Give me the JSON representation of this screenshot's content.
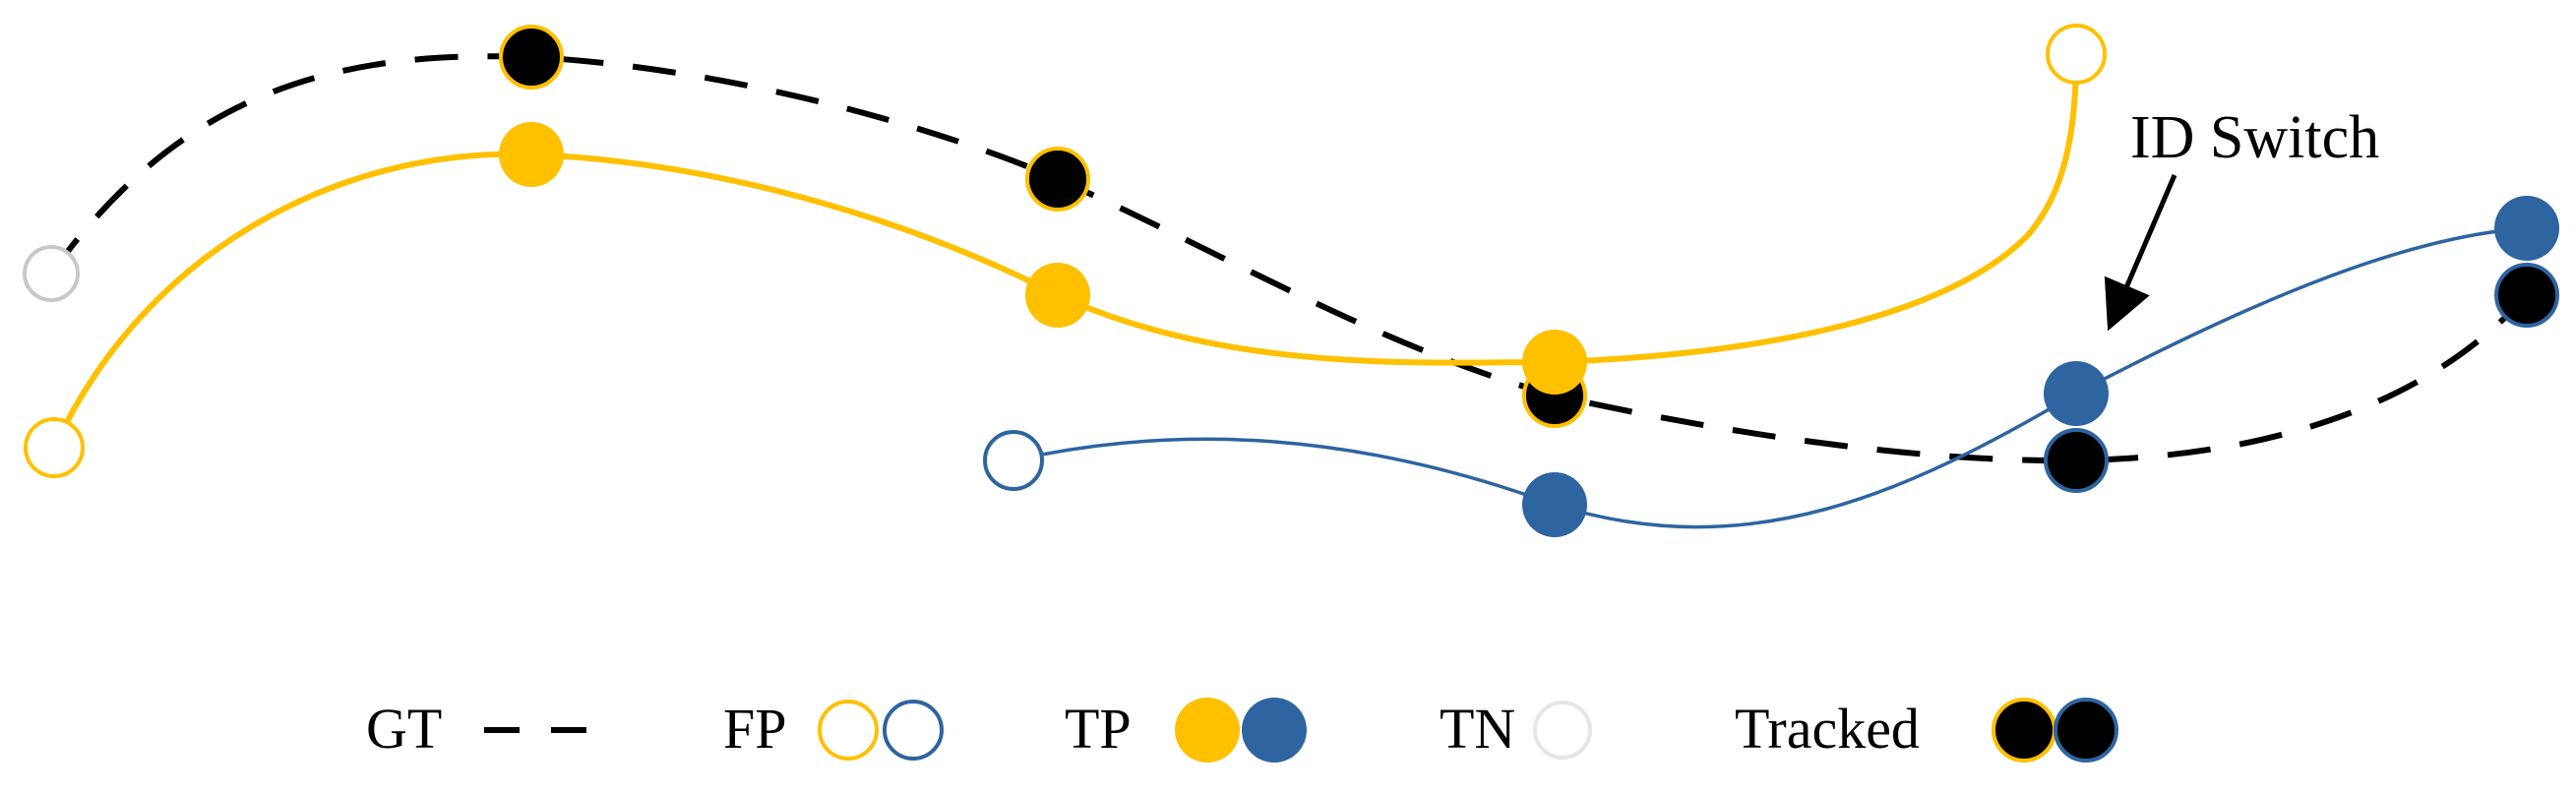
{
  "colors": {
    "yellow": "#FFC000",
    "blue": "#2E64A0",
    "black": "#000000",
    "gray": "#C8C8C8",
    "white": "#FFFFFF"
  },
  "annotation": {
    "id_switch": "ID Switch"
  },
  "legend": {
    "gt": "GT",
    "fp": "FP",
    "tp": "TP",
    "tn": "TN",
    "tracked": "Tracked"
  }
}
